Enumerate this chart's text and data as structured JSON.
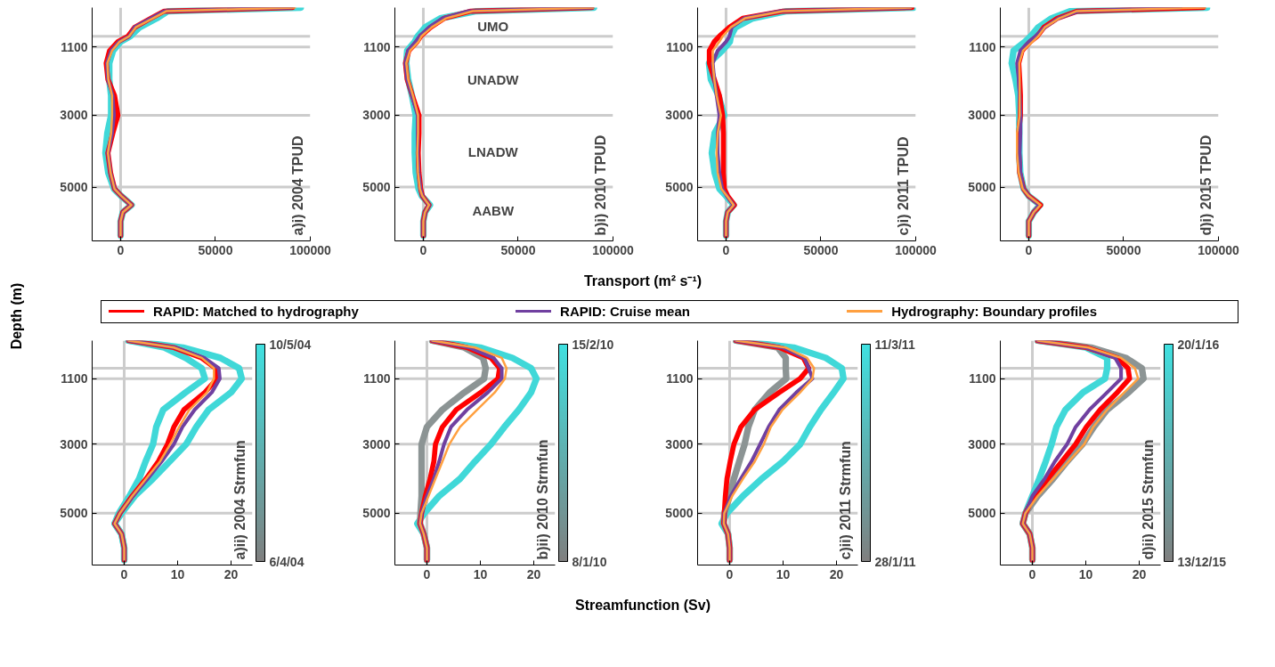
{
  "chart_data": [
    {
      "type": "line",
      "title": "a)i) 2004 TPUD",
      "ylabel": "Depth (m)",
      "xlim": [
        -15000,
        100000
      ],
      "xticks": [
        0,
        50000,
        100000
      ],
      "ylim": [
        6500,
        0
      ],
      "yticks": [
        1100,
        3000,
        5000
      ],
      "ref_lines": [
        {
          "axis": "y",
          "value": 800,
          "color": "#cccccc"
        },
        {
          "axis": "y",
          "value": 1100,
          "color": "#cccccc"
        },
        {
          "axis": "y",
          "value": 3000,
          "color": "#cccccc"
        },
        {
          "axis": "y",
          "value": 5000,
          "color": "#cccccc"
        },
        {
          "axis": "x",
          "value": 0,
          "color": "#cccccc"
        }
      ],
      "series": [
        {
          "color": "#40d8d8",
          "values": [
            0,
            100,
            300,
            550,
            800,
            950,
            1200,
            1550,
            2000,
            2450,
            3000,
            3500,
            4050,
            4600,
            5050,
            5250,
            5500,
            5700,
            5950,
            6350
          ],
          "x": [
            95000,
            25000,
            19000,
            10000,
            5000,
            0,
            -4000,
            -6000,
            -6000,
            -5000,
            -5000,
            -7000,
            -8000,
            -6500,
            -3500,
            300,
            5800,
            1200,
            0,
            0
          ]
        },
        {
          "color": "#ff0000",
          "values": [
            0,
            100,
            300,
            550,
            800,
            950,
            1200,
            1550,
            2000,
            2450,
            3000,
            3500,
            4050,
            4600,
            5050,
            5250,
            5500,
            5700,
            5950,
            6350
          ],
          "x": [
            90600,
            23000,
            16000,
            7400,
            3900,
            -1400,
            -5800,
            -7600,
            -6700,
            -3200,
            -1400,
            -4100,
            -6700,
            -5300,
            -3200,
            400,
            5700,
            1200,
            0,
            0
          ]
        },
        {
          "color": "#7040a0",
          "values": [
            0,
            100,
            300,
            550,
            800,
            950,
            1200,
            1550,
            2000,
            2450,
            3000,
            3500,
            4050,
            4600,
            5050,
            5250,
            5500,
            5700,
            5950,
            6350
          ],
          "x": [
            90000,
            23000,
            16000,
            7400,
            4500,
            -800,
            -5000,
            -7200,
            -6700,
            -4200,
            -3500,
            -4500,
            -6700,
            -5300,
            -3200,
            400,
            5700,
            1200,
            0,
            0
          ]
        },
        {
          "color": "#ffa040",
          "values": [
            0,
            100,
            300,
            550,
            800,
            950,
            1200,
            1550,
            2000,
            2450,
            3000,
            3500,
            4050,
            4600,
            5050,
            5250,
            5500,
            5700,
            5950,
            6350
          ],
          "x": [
            92000,
            24000,
            17000,
            8000,
            4500,
            -500,
            -4500,
            -7000,
            -6500,
            -4500,
            -4500,
            -5000,
            -6700,
            -5300,
            -3200,
            400,
            5700,
            1200,
            0,
            0
          ]
        }
      ]
    },
    {
      "type": "line",
      "title": "b)i) 2010 TPUD",
      "xlabel": "Transport (m² s⁻¹)",
      "xlim": [
        -15000,
        100000
      ],
      "xticks": [
        0,
        50000,
        100000
      ],
      "ylim": [
        6500,
        0
      ],
      "yticks": [
        1100,
        3000,
        5000
      ],
      "annotations": [
        "UMO",
        "UNADW",
        "LNADW",
        "AABW"
      ],
      "ref_lines": [
        {
          "axis": "y",
          "value": 800,
          "color": "#cccccc"
        },
        {
          "axis": "y",
          "value": 1100,
          "color": "#cccccc"
        },
        {
          "axis": "y",
          "value": 3000,
          "color": "#cccccc"
        },
        {
          "axis": "y",
          "value": 5000,
          "color": "#cccccc"
        },
        {
          "axis": "x",
          "value": 0,
          "color": "#cccccc"
        }
      ],
      "series": [
        {
          "color": "#40d8d8",
          "values": [
            0,
            100,
            300,
            550,
            800,
            950,
            1200,
            1550,
            2000,
            2450,
            3000,
            3500,
            4050,
            4600,
            5050,
            5250,
            5500,
            5700,
            5950,
            6350
          ],
          "x": [
            90000,
            28000,
            9000,
            1000,
            -3000,
            -4500,
            -8500,
            -9000,
            -8000,
            -6000,
            -4000,
            -4500,
            -4500,
            -4000,
            -2500,
            -800,
            3500,
            900,
            0,
            0
          ]
        },
        {
          "color": "#ff0000",
          "values": [
            0,
            100,
            300,
            550,
            800,
            950,
            1200,
            1550,
            2000,
            2450,
            3000,
            3500,
            4050,
            4600,
            5050,
            5250,
            5500,
            5700,
            5950,
            6350
          ],
          "x": [
            88800,
            25000,
            11000,
            3900,
            -1400,
            -3200,
            -7600,
            -9400,
            -8500,
            -5800,
            -2300,
            -2300,
            -2700,
            -2300,
            -1400,
            -500,
            3000,
            900,
            0,
            0
          ]
        },
        {
          "color": "#7040a0",
          "values": [
            0,
            100,
            300,
            550,
            800,
            950,
            1200,
            1550,
            2000,
            2450,
            3000,
            3500,
            4050,
            4600,
            5050,
            5250,
            5500,
            5700,
            5950,
            6350
          ],
          "x": [
            89000,
            24000,
            10000,
            3000,
            -2000,
            -4000,
            -8000,
            -9400,
            -8500,
            -6000,
            -3000,
            -3000,
            -3000,
            -2500,
            -1500,
            -500,
            3000,
            900,
            0,
            0
          ]
        },
        {
          "color": "#ffa040",
          "values": [
            0,
            100,
            300,
            550,
            800,
            950,
            1200,
            1550,
            2000,
            2450,
            3000,
            3500,
            4050,
            4600,
            5050,
            5250,
            5500,
            5700,
            5950,
            6350
          ],
          "x": [
            89500,
            26000,
            12000,
            4500,
            -1000,
            -2500,
            -7000,
            -9000,
            -8000,
            -5500,
            -2800,
            -2800,
            -3200,
            -2800,
            -1800,
            -500,
            3000,
            900,
            0,
            0
          ]
        }
      ]
    },
    {
      "type": "line",
      "title": "c)i) 2011 TPUD",
      "xlim": [
        -15000,
        100000
      ],
      "xticks": [
        0,
        50000,
        100000
      ],
      "ylim": [
        6500,
        0
      ],
      "yticks": [
        1100,
        3000,
        5000
      ],
      "ref_lines": [
        {
          "axis": "y",
          "value": 800,
          "color": "#cccccc"
        },
        {
          "axis": "y",
          "value": 1100,
          "color": "#cccccc"
        },
        {
          "axis": "y",
          "value": 3000,
          "color": "#cccccc"
        },
        {
          "axis": "y",
          "value": 5000,
          "color": "#cccccc"
        },
        {
          "axis": "x",
          "value": 0,
          "color": "#cccccc"
        }
      ],
      "series": [
        {
          "color": "#40d8d8",
          "values": [
            0,
            100,
            300,
            550,
            800,
            950,
            1200,
            1550,
            2000,
            2450,
            3000,
            3500,
            4050,
            4600,
            5050,
            5250,
            5500,
            5700,
            5950,
            6350
          ],
          "x": [
            99000,
            32000,
            14000,
            5000,
            2500,
            2000,
            -2000,
            -9000,
            -8000,
            -4000,
            -1000,
            -6000,
            -7500,
            -6000,
            -3500,
            0,
            4000,
            900,
            0,
            0
          ]
        },
        {
          "color": "#ff0000",
          "values": [
            0,
            100,
            300,
            550,
            800,
            950,
            1200,
            1550,
            2000,
            2450,
            3000,
            3500,
            4050,
            4600,
            5050,
            5250,
            5500,
            5700,
            5950,
            6350
          ],
          "x": [
            98000,
            30000,
            8800,
            1800,
            -3500,
            -6200,
            -8800,
            -8800,
            -6200,
            -3500,
            -1800,
            -1400,
            -1400,
            -1400,
            -900,
            900,
            4400,
            900,
            0,
            0
          ]
        },
        {
          "color": "#7040a0",
          "values": [
            0,
            100,
            300,
            550,
            800,
            950,
            1200,
            1550,
            2000,
            2450,
            3000,
            3500,
            4050,
            4600,
            5050,
            5250,
            5500,
            5700,
            5950,
            6350
          ],
          "x": [
            97000,
            29000,
            9500,
            3000,
            1800,
            0,
            -4400,
            -7000,
            -6200,
            -5000,
            -3500,
            -4400,
            -4400,
            -3500,
            -2000,
            500,
            4000,
            900,
            0,
            0
          ]
        },
        {
          "color": "#ffa040",
          "values": [
            0,
            100,
            300,
            550,
            800,
            950,
            1200,
            1550,
            2000,
            2450,
            3000,
            3500,
            4050,
            4600,
            5050,
            5250,
            5500,
            5700,
            5950,
            6350
          ],
          "x": [
            97500,
            30000,
            10000,
            2500,
            -1800,
            -3500,
            -7000,
            -7000,
            -6200,
            -5000,
            -2700,
            -4400,
            -5000,
            -4400,
            -2500,
            500,
            4000,
            900,
            0,
            0
          ]
        }
      ]
    },
    {
      "type": "line",
      "title": "d)i) 2015 TPUD",
      "xlim": [
        -15000,
        100000
      ],
      "xticks": [
        0,
        50000,
        100000
      ],
      "ylim": [
        6500,
        0
      ],
      "yticks": [
        1100,
        3000,
        5000
      ],
      "ref_lines": [
        {
          "axis": "y",
          "value": 800,
          "color": "#cccccc"
        },
        {
          "axis": "y",
          "value": 1100,
          "color": "#cccccc"
        },
        {
          "axis": "y",
          "value": 3000,
          "color": "#cccccc"
        },
        {
          "axis": "y",
          "value": 5000,
          "color": "#cccccc"
        },
        {
          "axis": "x",
          "value": 0,
          "color": "#cccccc"
        }
      ],
      "series": [
        {
          "color": "#40d8d8",
          "values": [
            0,
            100,
            300,
            550,
            800,
            950,
            1200,
            1550,
            2000,
            2450,
            3000,
            3500,
            4050,
            4600,
            5050,
            5250,
            5500,
            5700,
            5950,
            6350
          ],
          "x": [
            94000,
            22000,
            12000,
            5000,
            1000,
            -2000,
            -8000,
            -9000,
            -7000,
            -5500,
            -5000,
            -5000,
            -5000,
            -4500,
            -2700,
            0,
            6000,
            2700,
            0,
            0
          ]
        },
        {
          "color": "#ff0000",
          "values": [
            0,
            100,
            300,
            550,
            800,
            950,
            1200,
            1550,
            2000,
            2450,
            3000,
            3500,
            4050,
            4600,
            5050,
            5250,
            5500,
            5700,
            5950,
            6350
          ],
          "x": [
            92000,
            25700,
            15000,
            8000,
            4400,
            900,
            -3500,
            -5300,
            -4800,
            -4400,
            -4400,
            -5300,
            -5300,
            -4800,
            -2700,
            0,
            6200,
            2700,
            0,
            0
          ]
        },
        {
          "color": "#7040a0",
          "values": [
            0,
            100,
            300,
            550,
            800,
            950,
            1200,
            1550,
            2000,
            2450,
            3000,
            3500,
            4050,
            4600,
            5050,
            5250,
            5500,
            5700,
            5950,
            6350
          ],
          "x": [
            80000,
            26000,
            15500,
            8500,
            3500,
            0,
            -4400,
            -6200,
            -5300,
            -4800,
            -4400,
            -4400,
            -4800,
            -4400,
            -2700,
            0,
            5500,
            2700,
            0,
            0
          ]
        },
        {
          "color": "#ffa040",
          "values": [
            0,
            100,
            300,
            550,
            800,
            950,
            1200,
            1550,
            2000,
            2450,
            3000,
            3500,
            4050,
            4600,
            5050,
            5250,
            5500,
            5700,
            5950,
            6350
          ],
          "x": [
            93000,
            25000,
            16000,
            8500,
            5000,
            2000,
            -3000,
            -5000,
            -4800,
            -4800,
            -4800,
            -6200,
            -6200,
            -5300,
            -3200,
            0,
            6200,
            2700,
            0,
            0
          ]
        }
      ]
    },
    {
      "type": "line",
      "title": "a)ii) 2004 Strmfun",
      "legend": "top",
      "xlim": [
        -6,
        24
      ],
      "xticks": [
        0,
        10,
        20
      ],
      "ylim": [
        6500,
        0
      ],
      "yticks": [
        1100,
        3000,
        5000
      ],
      "clim": [
        "2004-04-06",
        "2004-05-10"
      ],
      "cticks": [
        {
          "value": "2004-04-06",
          "label": "6/4/04"
        },
        {
          "value": "2004-05-10",
          "label": "10/5/04"
        }
      ],
      "ref_lines": [
        {
          "axis": "y",
          "value": 800,
          "color": "#cccccc"
        },
        {
          "axis": "y",
          "value": 1100,
          "color": "#cccccc"
        },
        {
          "axis": "y",
          "value": 3000,
          "color": "#cccccc"
        },
        {
          "axis": "y",
          "value": 5000,
          "color": "#cccccc"
        },
        {
          "axis": "x",
          "value": 0,
          "color": "#cccccc"
        }
      ],
      "series": [
        {
          "color": "#40d8d8",
          "values": [
            0,
            200,
            500,
            800,
            1100,
            1500,
            2000,
            2500,
            3000,
            3500,
            4000,
            4500,
            5000,
            5300,
            5600,
            6000,
            6350
          ],
          "x": [
            0.8,
            11,
            18,
            21.5,
            22,
            20,
            15.8,
            13.5,
            11.6,
            8.5,
            5.4,
            2,
            -0.5,
            -1.8,
            -0.5,
            0,
            0
          ]
        },
        {
          "color": "#40d8d8",
          "values": [
            0,
            200,
            500,
            800,
            1100,
            1500,
            2000,
            2500,
            3000,
            3500,
            4000,
            4500,
            5000,
            5300,
            5600,
            6000,
            6350
          ],
          "x": [
            0.8,
            7.5,
            11.5,
            14.5,
            15.1,
            11.5,
            7.3,
            6,
            5.4,
            4,
            2.8,
            1,
            -1,
            -1.8,
            -0.5,
            0,
            0
          ]
        },
        {
          "name": "RAPID: Matched to hydrography",
          "color": "#ff0000",
          "values": [
            0,
            200,
            500,
            800,
            1100,
            1500,
            2000,
            2500,
            3000,
            3500,
            4000,
            4500,
            5000,
            5300,
            5600,
            6000,
            6350
          ],
          "x": [
            0.8,
            9.3,
            14.5,
            17.1,
            17.4,
            15.1,
            11.2,
            9.3,
            8.1,
            6.4,
            4.1,
            1.5,
            -0.8,
            -1.8,
            -0.5,
            0,
            0
          ]
        },
        {
          "name": "RAPID: Cruise mean",
          "color": "#7040a0",
          "values": [
            0,
            200,
            500,
            800,
            1100,
            1500,
            2000,
            2500,
            3000,
            3500,
            4000,
            4500,
            5000,
            5300,
            5600,
            6000,
            6350
          ],
          "x": [
            0.8,
            9.5,
            15,
            17.7,
            17.9,
            16.4,
            13.2,
            10.9,
            9.3,
            7.0,
            4.4,
            1.6,
            -0.8,
            -1.8,
            -0.5,
            0,
            0
          ]
        },
        {
          "name": "Hydrography: Boundary profiles",
          "color": "#ffa040",
          "values": [
            0,
            200,
            500,
            800,
            1100,
            1500,
            2000,
            2500,
            3000,
            3500,
            4000,
            4500,
            5000,
            5300,
            5600,
            6000,
            6350
          ],
          "x": [
            0.8,
            9.3,
            14.5,
            16.8,
            16.8,
            15.5,
            12.2,
            10.3,
            8.6,
            6.7,
            4.1,
            1.5,
            -0.8,
            -1.8,
            -0.5,
            0,
            0
          ]
        }
      ]
    },
    {
      "type": "line",
      "title": "b)ii) 2010 Strmfun",
      "xlabel": "Streamfunction (Sv)",
      "xlim": [
        -6,
        24
      ],
      "xticks": [
        0,
        10,
        20
      ],
      "ylim": [
        6500,
        0
      ],
      "yticks": [
        1100,
        3000,
        5000
      ],
      "clim": [
        "2010-01-08",
        "2010-02-15"
      ],
      "cticks": [
        {
          "value": "2010-01-08",
          "label": "8/1/10"
        },
        {
          "value": "2010-02-15",
          "label": "15/2/10"
        }
      ],
      "ref_lines": [
        {
          "axis": "y",
          "value": 800,
          "color": "#cccccc"
        },
        {
          "axis": "y",
          "value": 1100,
          "color": "#cccccc"
        },
        {
          "axis": "y",
          "value": 3000,
          "color": "#cccccc"
        },
        {
          "axis": "y",
          "value": 5000,
          "color": "#cccccc"
        },
        {
          "axis": "x",
          "value": 0,
          "color": "#cccccc"
        }
      ],
      "series": [
        {
          "color": "#40d8d8",
          "values": [
            0,
            200,
            500,
            800,
            1100,
            1500,
            2000,
            2500,
            3000,
            3500,
            4000,
            4500,
            5000,
            5300,
            5600,
            6000,
            6350
          ],
          "x": [
            1.0,
            10,
            16,
            19.5,
            20.5,
            19.5,
            17.2,
            14.5,
            12,
            9,
            6.2,
            2.3,
            -0.5,
            -1.8,
            -0.6,
            0,
            0
          ]
        },
        {
          "color": "#8c9494",
          "values": [
            0,
            200,
            500,
            800,
            1100,
            1500,
            2000,
            2500,
            3000,
            3500,
            4000,
            4500,
            5000,
            5300,
            5600,
            6000,
            6350
          ],
          "x": [
            1.0,
            7,
            10.5,
            11,
            10.7,
            7,
            2.9,
            0,
            -1.0,
            -1.0,
            -1.0,
            -1.0,
            -1.2,
            -1.3,
            -0.6,
            0,
            0
          ]
        },
        {
          "color": "#ff0000",
          "values": [
            0,
            200,
            500,
            800,
            1100,
            1500,
            2000,
            2500,
            3000,
            3500,
            4000,
            4500,
            5000,
            5300,
            5600,
            6000,
            6350
          ],
          "x": [
            1.0,
            7.5,
            12,
            13.6,
            13.3,
            10.1,
            5.5,
            2.9,
            1.6,
            1.3,
            0.6,
            -0.3,
            -1.0,
            -1.3,
            -0.6,
            0,
            0
          ]
        },
        {
          "color": "#7040a0",
          "values": [
            0,
            200,
            500,
            800,
            1100,
            1500,
            2000,
            2500,
            3000,
            3500,
            4000,
            4500,
            5000,
            5300,
            5600,
            6000,
            6350
          ],
          "x": [
            1.0,
            8,
            12.5,
            14.0,
            14.0,
            11.4,
            7.5,
            4.5,
            3.2,
            2.3,
            1.3,
            0,
            -1.0,
            -1.3,
            -0.6,
            0,
            0
          ]
        },
        {
          "color": "#ffa040",
          "values": [
            0,
            200,
            500,
            800,
            1100,
            1500,
            2000,
            2500,
            3000,
            3500,
            4000,
            4500,
            5000,
            5300,
            5600,
            6000,
            6350
          ],
          "x": [
            1.0,
            9,
            14,
            14.9,
            14.6,
            12.7,
            9.4,
            6.2,
            4.2,
            2.9,
            1.6,
            0.3,
            -1.0,
            -1.3,
            -0.6,
            0,
            0
          ]
        }
      ]
    },
    {
      "type": "line",
      "title": "c)ii) 2011 Strmfun",
      "xlim": [
        -6,
        24
      ],
      "xticks": [
        0,
        10,
        20
      ],
      "ylim": [
        6500,
        0
      ],
      "yticks": [
        1100,
        3000,
        5000
      ],
      "clim": [
        "2011-01-28",
        "2011-03-11"
      ],
      "cticks": [
        {
          "value": "2011-01-28",
          "label": "28/1/11"
        },
        {
          "value": "2011-03-11",
          "label": "11/3/11"
        }
      ],
      "ref_lines": [
        {
          "axis": "y",
          "value": 800,
          "color": "#cccccc"
        },
        {
          "axis": "y",
          "value": 1100,
          "color": "#cccccc"
        },
        {
          "axis": "y",
          "value": 3000,
          "color": "#cccccc"
        },
        {
          "axis": "y",
          "value": 5000,
          "color": "#cccccc"
        },
        {
          "axis": "x",
          "value": 0,
          "color": "#cccccc"
        }
      ],
      "series": [
        {
          "color": "#40d8d8",
          "values": [
            0,
            200,
            500,
            800,
            1100,
            1500,
            2000,
            2500,
            3000,
            3500,
            4000,
            4500,
            5000,
            5300,
            5600,
            6000,
            6350
          ],
          "x": [
            1.2,
            12,
            18,
            21,
            21.3,
            19.5,
            17.1,
            15,
            13.2,
            10,
            6.0,
            2.5,
            -0.5,
            -1.5,
            -0.3,
            0,
            0
          ]
        },
        {
          "color": "#8c9494",
          "values": [
            0,
            200,
            500,
            800,
            1100,
            1500,
            2000,
            2500,
            3000,
            3500,
            4000,
            4500,
            5000,
            5300,
            5600,
            6000,
            6350
          ],
          "x": [
            1.2,
            9,
            10.5,
            10.5,
            10.6,
            7.5,
            4.7,
            3.5,
            2.8,
            1.8,
            0.8,
            0,
            -1.0,
            -1.1,
            -0.3,
            0,
            0
          ]
        },
        {
          "color": "#ff0000",
          "values": [
            0,
            200,
            500,
            800,
            1100,
            1500,
            2000,
            2500,
            3000,
            3500,
            4000,
            4500,
            5000,
            5300,
            5600,
            6000,
            6350
          ],
          "x": [
            1.2,
            9.3,
            13.8,
            14.8,
            13.2,
            9.3,
            4.7,
            2.1,
            0.8,
            0.1,
            -0.5,
            -0.8,
            -1.0,
            -1.1,
            -0.3,
            0,
            0
          ]
        },
        {
          "color": "#7040a0",
          "values": [
            0,
            200,
            500,
            800,
            1100,
            1500,
            2000,
            2500,
            3000,
            3500,
            4000,
            4500,
            5000,
            5300,
            5600,
            6000,
            6350
          ],
          "x": [
            1.2,
            10,
            14,
            14.8,
            15.5,
            12.5,
            9.3,
            7.3,
            5.7,
            4.1,
            2.1,
            0.2,
            -1.0,
            -1.1,
            -0.3,
            0,
            0
          ]
        },
        {
          "color": "#ffa040",
          "values": [
            0,
            200,
            500,
            800,
            1100,
            1500,
            2000,
            2500,
            3000,
            3500,
            4000,
            4500,
            5000,
            5300,
            5600,
            6000,
            6350
          ],
          "x": [
            1.2,
            10.5,
            14.5,
            15.8,
            15.5,
            13.2,
            9.9,
            7.7,
            6.4,
            4.7,
            2.5,
            0.5,
            -1.0,
            -1.1,
            -0.3,
            0,
            0
          ]
        }
      ]
    },
    {
      "type": "line",
      "title": "d)ii) 2015 Strmfun",
      "xlim": [
        -6,
        24
      ],
      "xticks": [
        0,
        10,
        20
      ],
      "ylim": [
        6500,
        0
      ],
      "yticks": [
        1100,
        3000,
        5000
      ],
      "clim": [
        "2015-12-13",
        "2016-01-20"
      ],
      "cticks": [
        {
          "value": "2015-12-13",
          "label": "13/12/15"
        },
        {
          "value": "2016-01-20",
          "label": "20/1/16"
        }
      ],
      "ref_lines": [
        {
          "axis": "y",
          "value": 800,
          "color": "#cccccc"
        },
        {
          "axis": "y",
          "value": 1100,
          "color": "#cccccc"
        },
        {
          "axis": "y",
          "value": 3000,
          "color": "#cccccc"
        },
        {
          "axis": "y",
          "value": 5000,
          "color": "#cccccc"
        },
        {
          "axis": "x",
          "value": 0,
          "color": "#cccccc"
        }
      ],
      "series": [
        {
          "color": "#40d8d8",
          "values": [
            0,
            200,
            500,
            800,
            1100,
            1500,
            2000,
            2500,
            3000,
            3500,
            4000,
            4500,
            5000,
            5300,
            5600,
            6000,
            6350
          ],
          "x": [
            1.0,
            10,
            14,
            14,
            13.6,
            9.5,
            6.2,
            4.5,
            3.6,
            2.5,
            1.3,
            0,
            -1.3,
            -1.8,
            -0.5,
            0,
            0
          ]
        },
        {
          "color": "#8c9494",
          "values": [
            0,
            200,
            500,
            800,
            1100,
            1500,
            2000,
            2500,
            3000,
            3500,
            4000,
            4500,
            5000,
            5300,
            5600,
            6000,
            6350
          ],
          "x": [
            1.0,
            11,
            17.5,
            20.5,
            20.8,
            18,
            14,
            11.5,
            9.4,
            6.5,
            3.9,
            1,
            -1.3,
            -1.8,
            -0.5,
            0,
            0
          ]
        },
        {
          "color": "#ff0000",
          "values": [
            0,
            200,
            500,
            800,
            1100,
            1500,
            2000,
            2500,
            3000,
            3500,
            4000,
            4500,
            5000,
            5300,
            5600,
            6000,
            6350
          ],
          "x": [
            1.0,
            10.1,
            15.9,
            17.9,
            18.2,
            15.9,
            12.7,
            10.1,
            8.1,
            5.5,
            2.9,
            0.3,
            -1.3,
            -1.8,
            -0.5,
            0,
            0
          ]
        },
        {
          "color": "#7040a0",
          "values": [
            0,
            200,
            500,
            800,
            1100,
            1500,
            2000,
            2500,
            3000,
            3500,
            4000,
            4500,
            5000,
            5300,
            5600,
            6000,
            6350
          ],
          "x": [
            1.0,
            10,
            15.5,
            16.6,
            16.6,
            14.0,
            10.7,
            8.1,
            6.5,
            4.2,
            2.3,
            0,
            -1.3,
            -1.8,
            -0.5,
            0,
            0
          ]
        },
        {
          "color": "#ffa040",
          "values": [
            0,
            200,
            500,
            800,
            1100,
            1500,
            2000,
            2500,
            3000,
            3500,
            4000,
            4500,
            5000,
            5300,
            5600,
            6000,
            6350
          ],
          "x": [
            1.0,
            10.5,
            16.6,
            19.2,
            19.8,
            17.2,
            14,
            11.4,
            9.7,
            6.8,
            3.9,
            1.0,
            -1.3,
            -1.8,
            -0.5,
            0,
            0
          ]
        }
      ]
    }
  ]
}
